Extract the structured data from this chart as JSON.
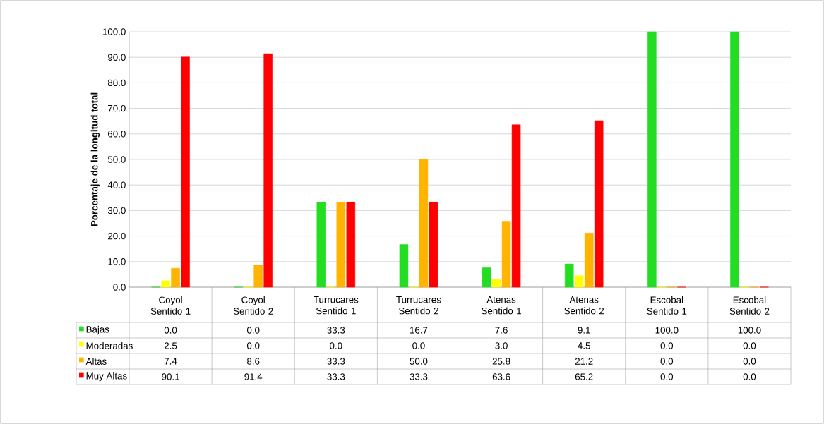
{
  "chart_data": {
    "type": "bar",
    "ylabel": "Porcentaje de la longitud total",
    "categories": [
      "Coyol Sentido 1",
      "Coyol Sentido 2",
      "Turrucares Sentido 1",
      "Turrucares Sentido 2",
      "Atenas Sentido 1",
      "Atenas Sentido 2",
      "Escobal Sentido 1",
      "Escobal Sentido 2"
    ],
    "series": [
      {
        "name": "Bajas",
        "color": "#22dd22",
        "values": [
          0.0,
          0.0,
          33.3,
          16.7,
          7.6,
          9.1,
          100.0,
          100.0
        ],
        "value_labels": [
          "0.0",
          "0.0",
          "33.3",
          "16.7",
          "7.6",
          "9.1",
          "100.0",
          "100.0"
        ]
      },
      {
        "name": "Moderadas",
        "color": "#ffff00",
        "values": [
          2.5,
          0.0,
          0.0,
          0.0,
          3.0,
          4.5,
          0.0,
          0.0
        ],
        "value_labels": [
          "2.5",
          "0.0",
          "0.0",
          "0.0",
          "3.0",
          "4.5",
          "0.0",
          "0.0"
        ]
      },
      {
        "name": "Altas",
        "color": "#ffb400",
        "values": [
          7.4,
          8.6,
          33.3,
          50.0,
          25.8,
          21.2,
          0.0,
          0.0
        ],
        "value_labels": [
          "7.4",
          "8.6",
          "33.3",
          "50.0",
          "25.8",
          "21.2",
          "0.0",
          "0.0"
        ]
      },
      {
        "name": "Muy Altas",
        "color": "#ff0000",
        "values": [
          90.1,
          91.4,
          33.3,
          33.3,
          63.6,
          65.2,
          0.0,
          0.0
        ],
        "value_labels": [
          "90.1",
          "91.4",
          "33.3",
          "33.3",
          "63.6",
          "65.2",
          "0.0",
          "0.0"
        ]
      }
    ],
    "ylim": [
      0,
      100
    ],
    "yticks": [
      {
        "value": 0,
        "label": "0.0"
      },
      {
        "value": 10,
        "label": "10.0"
      },
      {
        "value": 20,
        "label": "20.0"
      },
      {
        "value": 30,
        "label": "30.0"
      },
      {
        "value": 40,
        "label": "40.0"
      },
      {
        "value": 50,
        "label": "50.0"
      },
      {
        "value": 60,
        "label": "60.0"
      },
      {
        "value": 70,
        "label": "70.0"
      },
      {
        "value": 80,
        "label": "80.0"
      },
      {
        "value": 90,
        "label": "90.0"
      },
      {
        "value": 100,
        "label": "100.0"
      }
    ],
    "grid": "y",
    "legend": "bottom"
  }
}
